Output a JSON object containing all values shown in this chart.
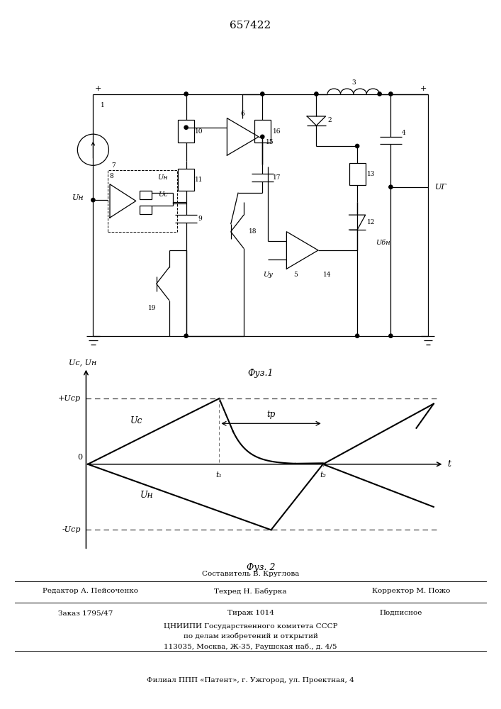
{
  "title": "657422",
  "fig1_caption": "Фуз.1",
  "fig2_caption": "Фуз. 2",
  "ylabel_fig2": "Uс, Uн",
  "xlabel_fig2": "t",
  "label_plus_Ucp": "+Uср",
  "label_minus_Ucp": "-Uср",
  "label_Uc": "Uс",
  "label_Un": "Uн",
  "label_tp": "tр",
  "label_t1": "t₁",
  "label_t2": "t₂",
  "label_Un_left": "Uн",
  "label_UH_right": "UГ",
  "footer_sostav": "Составитель В. Круглова",
  "footer_red": "Редактор А. Пейсоченко",
  "footer_tex": "Техред Н. Бабурка",
  "footer_kor": "Корректор М. Пожо",
  "footer_zakaz": "Заказ 1795/47",
  "footer_tirazh": "Тираж 1014",
  "footer_podp": "Подписное",
  "footer_cniip": "ЦНИИПИ Государственного комитета СССР",
  "footer_po": "по делам изобретений и открытий",
  "footer_addr": "113035, Москва, Ж-35, Раушская наб., д. 4/5",
  "footer_filial": "Филиал ППП «Патент», г. Ужгород, ул. Проектная, 4",
  "bg_color": "#ffffff",
  "line_color": "#000000"
}
